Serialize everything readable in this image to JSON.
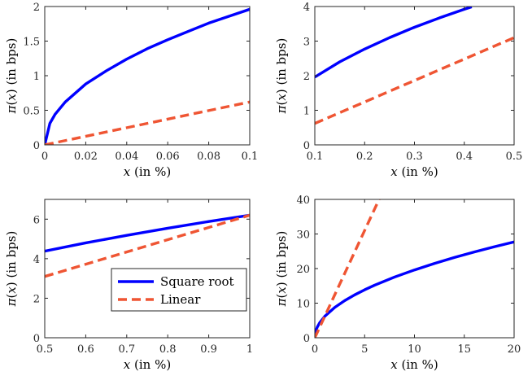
{
  "chart_data": [
    {
      "type": "line",
      "xlabel": "x (in %)",
      "ylabel": "π(x) (in bps)",
      "xlim": [
        0,
        0.1
      ],
      "ylim": [
        0,
        2
      ],
      "xticks": [
        "0",
        "0.02",
        "0.04",
        "0.06",
        "0.08",
        "0.1"
      ],
      "yticks": [
        "0",
        "0.5",
        "1",
        "1.5",
        "2"
      ],
      "series": [
        {
          "name": "Square root",
          "color": "#0000ff",
          "style": "solid",
          "x": [
            0,
            0.0025,
            0.005,
            0.01,
            0.02,
            0.03,
            0.04,
            0.05,
            0.06,
            0.07,
            0.08,
            0.09,
            0.1
          ],
          "y": [
            0,
            0.31,
            0.44,
            0.62,
            0.88,
            1.07,
            1.24,
            1.39,
            1.52,
            1.64,
            1.76,
            1.86,
            1.96
          ]
        },
        {
          "name": "Linear",
          "color": "#ef5533",
          "style": "dashed",
          "x": [
            0,
            0.1
          ],
          "y": [
            0,
            0.62
          ]
        }
      ]
    },
    {
      "type": "line",
      "xlabel": "x (in %)",
      "ylabel": "π(x) (in bps)",
      "xlim": [
        0.1,
        0.5
      ],
      "ylim": [
        0,
        4
      ],
      "xticks": [
        "0.1",
        "0.2",
        "0.3",
        "0.4",
        "0.5"
      ],
      "yticks": [
        "0",
        "1",
        "2",
        "3",
        "4"
      ],
      "series": [
        {
          "name": "Square root",
          "color": "#0000ff",
          "style": "solid",
          "x": [
            0.1,
            0.15,
            0.2,
            0.25,
            0.3,
            0.35,
            0.4,
            0.415
          ],
          "y": [
            1.96,
            2.4,
            2.77,
            3.1,
            3.4,
            3.67,
            3.92,
            3.99
          ]
        },
        {
          "name": "Linear",
          "color": "#ef5533",
          "style": "dashed",
          "x": [
            0.1,
            0.5
          ],
          "y": [
            0.62,
            3.1
          ]
        }
      ]
    },
    {
      "type": "line",
      "xlabel": "x (in %)",
      "ylabel": "π(x) (in bps)",
      "xlim": [
        0.5,
        1
      ],
      "ylim": [
        0,
        7
      ],
      "xticks": [
        "0.5",
        "0.6",
        "0.7",
        "0.8",
        "0.9",
        "1"
      ],
      "yticks": [
        "0",
        "2",
        "4",
        "6"
      ],
      "legend": {
        "position": "bottom-right",
        "entries": [
          "Square root",
          "Linear"
        ]
      },
      "series": [
        {
          "name": "Square root",
          "color": "#0000ff",
          "style": "solid",
          "x": [
            0.5,
            0.6,
            0.7,
            0.8,
            0.9,
            1
          ],
          "y": [
            4.38,
            4.8,
            5.18,
            5.54,
            5.88,
            6.2
          ]
        },
        {
          "name": "Linear",
          "color": "#ef5533",
          "style": "dashed",
          "x": [
            0.5,
            1
          ],
          "y": [
            3.1,
            6.2
          ]
        }
      ]
    },
    {
      "type": "line",
      "xlabel": "x (in %)",
      "ylabel": "π(x) (in bps)",
      "xlim": [
        0,
        20
      ],
      "ylim": [
        0,
        40
      ],
      "xticks": [
        "0",
        "5",
        "10",
        "15",
        "20"
      ],
      "yticks": [
        "0",
        "10",
        "20",
        "30",
        "40"
      ],
      "series": [
        {
          "name": "Square root",
          "color": "#0000ff",
          "style": "solid",
          "x": [
            0,
            0.1,
            0.25,
            0.5,
            1,
            2,
            3,
            4,
            5,
            6,
            8,
            10,
            12,
            14,
            16,
            18,
            20
          ],
          "y": [
            0,
            1.96,
            3.1,
            4.38,
            6.2,
            8.77,
            10.74,
            12.4,
            13.86,
            15.19,
            17.54,
            19.6,
            21.48,
            23.2,
            24.8,
            26.3,
            27.7
          ]
        },
        {
          "name": "Linear",
          "color": "#ef5533",
          "style": "dashed",
          "x": [
            0,
            6.45
          ],
          "y": [
            0,
            40
          ]
        }
      ]
    }
  ]
}
